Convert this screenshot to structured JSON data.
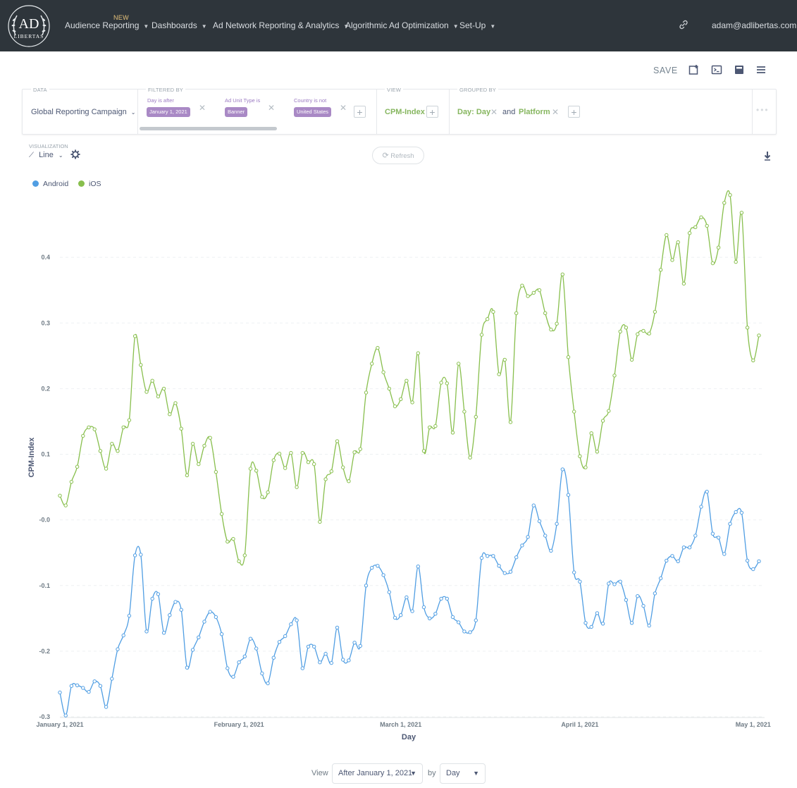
{
  "nav": {
    "logo_text": "AD LIBERTAS",
    "new_badge": "NEW",
    "items": [
      {
        "label": "Audience Reporting"
      },
      {
        "label": "Dashboards"
      },
      {
        "label": "Ad Network Reporting & Analytics"
      },
      {
        "label": "Algorithmic Ad Optimization"
      },
      {
        "label": "Set-Up"
      }
    ],
    "user_email": "adam@adlibertas.com"
  },
  "toolbar": {
    "save_label": "SAVE"
  },
  "query": {
    "data_label": "DATA",
    "data_value": "Global Reporting Campaign",
    "filtered_label": "FILTERED BY",
    "filters": [
      {
        "label": "Day is after",
        "value": "January 1, 2021"
      },
      {
        "label": "Ad Unit Type is",
        "value": "Banner"
      },
      {
        "label": "Country is not",
        "value": "United States"
      }
    ],
    "view_label": "VIEW",
    "view_value": "CPM-Index",
    "grouped_label": "GROUPED BY",
    "group_1": "Day: Day",
    "and_text": "and",
    "group_2": "Platform"
  },
  "visualization": {
    "label": "VISUALIZATION",
    "type": "Line",
    "refresh_label": "Refresh"
  },
  "chart_data": {
    "type": "line",
    "xlabel": "Day",
    "ylabel": "CPM-Index",
    "ylim": [
      -0.3,
      0.5
    ],
    "y_ticks": [
      -0.3,
      -0.2,
      -0.1,
      0.0,
      0.1,
      0.2,
      0.3,
      0.4
    ],
    "y_tick_labels": [
      "-0.3",
      "-0.2",
      "-0.1",
      "-0.0",
      "0.1",
      "0.2",
      "0.3",
      "0.4"
    ],
    "x_start": "January 1, 2021",
    "x_end": "May 1, 2021",
    "x_ticks": [
      {
        "day": 0,
        "label": "January 1, 2021"
      },
      {
        "day": 31,
        "label": "February 1, 2021"
      },
      {
        "day": 59,
        "label": "March 1, 2021"
      },
      {
        "day": 90,
        "label": "April 1, 2021"
      },
      {
        "day": 120,
        "label": "May 1, 2021"
      }
    ],
    "grid": true,
    "legend_position": "top-left",
    "series": [
      {
        "name": "Android",
        "color": "#509ee3",
        "values": [
          -0.263,
          -0.298,
          -0.253,
          -0.252,
          -0.256,
          -0.262,
          -0.246,
          -0.253,
          -0.285,
          -0.242,
          -0.197,
          -0.176,
          -0.146,
          -0.054,
          -0.053,
          -0.17,
          -0.12,
          -0.113,
          -0.172,
          -0.145,
          -0.125,
          -0.137,
          -0.225,
          -0.198,
          -0.179,
          -0.155,
          -0.14,
          -0.148,
          -0.174,
          -0.226,
          -0.239,
          -0.217,
          -0.208,
          -0.181,
          -0.196,
          -0.234,
          -0.249,
          -0.21,
          -0.186,
          -0.177,
          -0.159,
          -0.153,
          -0.226,
          -0.193,
          -0.193,
          -0.217,
          -0.204,
          -0.218,
          -0.164,
          -0.213,
          -0.214,
          -0.187,
          -0.192,
          -0.1,
          -0.073,
          -0.07,
          -0.084,
          -0.11,
          -0.149,
          -0.145,
          -0.118,
          -0.139,
          -0.071,
          -0.133,
          -0.15,
          -0.143,
          -0.12,
          -0.12,
          -0.148,
          -0.156,
          -0.17,
          -0.171,
          -0.153,
          -0.058,
          -0.055,
          -0.055,
          -0.07,
          -0.081,
          -0.079,
          -0.057,
          -0.039,
          -0.026,
          0.022,
          -0.002,
          -0.024,
          -0.047,
          -0.006,
          0.077,
          0.038,
          -0.08,
          -0.094,
          -0.157,
          -0.163,
          -0.142,
          -0.158,
          -0.097,
          -0.098,
          -0.094,
          -0.122,
          -0.157,
          -0.116,
          -0.131,
          -0.161,
          -0.112,
          -0.089,
          -0.062,
          -0.055,
          -0.063,
          -0.042,
          -0.042,
          -0.024,
          0.02,
          0.043,
          -0.021,
          -0.027,
          -0.052,
          -0.006,
          0.012,
          0.011,
          -0.062,
          -0.075,
          -0.063
        ]
      },
      {
        "name": "iOS",
        "color": "#88bf4d",
        "values": [
          0.037,
          0.022,
          0.058,
          0.081,
          0.128,
          0.141,
          0.138,
          0.105,
          0.078,
          0.116,
          0.105,
          0.141,
          0.152,
          0.28,
          0.236,
          0.195,
          0.212,
          0.188,
          0.2,
          0.161,
          0.178,
          0.139,
          0.068,
          0.116,
          0.085,
          0.113,
          0.125,
          0.073,
          0.009,
          -0.033,
          -0.029,
          -0.063,
          -0.054,
          0.078,
          0.075,
          0.035,
          0.042,
          0.091,
          0.101,
          0.079,
          0.102,
          0.05,
          0.102,
          0.088,
          0.085,
          -0.003,
          0.062,
          0.074,
          0.12,
          0.08,
          0.059,
          0.103,
          0.108,
          0.194,
          0.238,
          0.262,
          0.225,
          0.2,
          0.173,
          0.184,
          0.212,
          0.179,
          0.254,
          0.105,
          0.141,
          0.143,
          0.209,
          0.208,
          0.133,
          0.238,
          0.165,
          0.095,
          0.157,
          0.282,
          0.306,
          0.317,
          0.222,
          0.244,
          0.149,
          0.315,
          0.357,
          0.341,
          0.346,
          0.35,
          0.315,
          0.29,
          0.299,
          0.374,
          0.248,
          0.165,
          0.097,
          0.08,
          0.132,
          0.104,
          0.151,
          0.166,
          0.22,
          0.287,
          0.293,
          0.244,
          0.283,
          0.288,
          0.284,
          0.317,
          0.381,
          0.434,
          0.396,
          0.423,
          0.36,
          0.437,
          0.446,
          0.461,
          0.448,
          0.391,
          0.415,
          0.483,
          0.495,
          0.393,
          0.468,
          0.293,
          0.243,
          0.281
        ]
      }
    ]
  },
  "footer": {
    "view_text": "View",
    "range_value": "After January 1, 2021",
    "by_text": "by",
    "unit_value": "Day"
  }
}
